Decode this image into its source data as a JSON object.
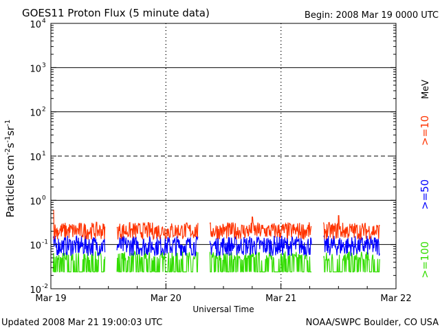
{
  "header": {
    "title": "GOES11 Proton Flux (5 minute data)",
    "begin": "Begin: 2008 Mar 19 0000 UTC"
  },
  "footer": {
    "updated": "Updated 2008 Mar 21 19:00:03 UTC",
    "credit": "NOAA/SWPC Boulder, CO USA"
  },
  "chart_data": {
    "type": "line",
    "title": "GOES11 Proton Flux (5 minute data)",
    "xlabel": "Universal Time",
    "ylabel": "Particles cm-2s-1sr-1",
    "yscale": "log",
    "ylim": [
      0.01,
      10000
    ],
    "xlim": [
      0,
      3
    ],
    "x_tick_labels": [
      "Mar 19",
      "Mar 20",
      "Mar 21",
      "Mar 22"
    ],
    "y_tick_exponents": [
      "-2",
      "-1",
      "0",
      "1",
      "2",
      "3",
      "4"
    ],
    "grid": true,
    "units_label": "MeV",
    "data_gaps_days": [
      [
        0.47,
        0.57
      ],
      [
        1.28,
        1.38
      ],
      [
        2.27,
        2.37
      ],
      [
        2.86,
        3.0
      ]
    ],
    "series": [
      {
        "name": ">=10",
        "color": "#ff3300",
        "typical_range": [
          0.13,
          0.32
        ],
        "spikes": [
          [
            0.02,
            0.6
          ],
          [
            1.75,
            0.42
          ],
          [
            2.5,
            0.45
          ]
        ]
      },
      {
        "name": ">=50",
        "color": "#0000ff",
        "typical_range": [
          0.055,
          0.16
        ],
        "spikes": []
      },
      {
        "name": ">=100",
        "color": "#33dd00",
        "typical_range": [
          0.024,
          0.07
        ],
        "spikes": []
      }
    ]
  }
}
